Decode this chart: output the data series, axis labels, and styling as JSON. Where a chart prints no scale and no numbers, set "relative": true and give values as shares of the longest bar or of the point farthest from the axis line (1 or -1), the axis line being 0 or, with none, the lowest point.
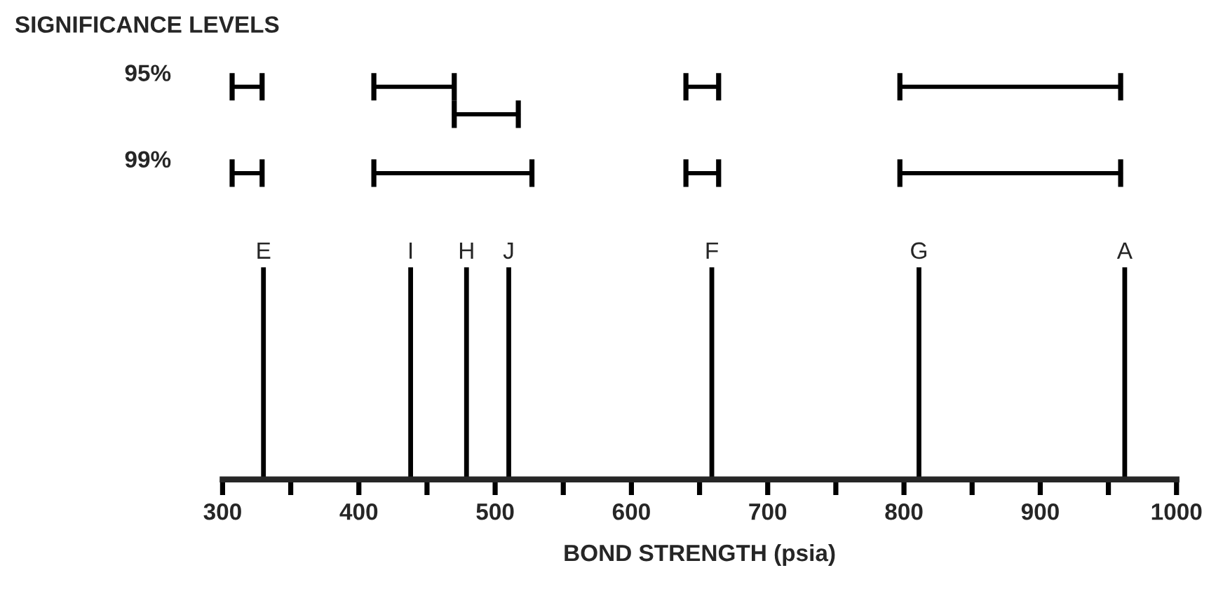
{
  "chart_data": {
    "type": "bar",
    "relative": true,
    "title": "SIGNIFICANCE LEVELS",
    "xlabel": "BOND STRENGTH (psia)",
    "xlim": [
      300,
      1000
    ],
    "xticks": [
      300,
      {
        "value": 350,
        "label": null
      },
      400,
      {
        "value": 450,
        "label": null
      },
      500,
      {
        "value": 550,
        "label": null
      },
      600,
      {
        "value": 650,
        "label": null
      },
      700,
      {
        "value": 750,
        "label": null
      },
      800,
      {
        "value": 850,
        "label": null
      },
      900,
      {
        "value": 950,
        "label": null
      },
      1000
    ],
    "series": [
      {
        "color": "#000000",
        "x": [
          330,
          438,
          479,
          510,
          659,
          811,
          962
        ],
        "values": [
          0.54,
          0.54,
          0.54,
          0.54,
          0.54,
          0.54,
          0.54
        ]
      },
      {
        "type": "line",
        "color": "#000000",
        "x": [
          307,
          329
        ],
        "values": [
          1,
          1
        ]
      },
      {
        "type": "line",
        "color": "#000000",
        "x": [
          411,
          470
        ],
        "values": [
          1,
          1
        ]
      },
      {
        "type": "line",
        "color": "#000000",
        "x": [
          470,
          517
        ],
        "values": [
          0.93,
          0.93
        ]
      },
      {
        "type": "line",
        "color": "#000000",
        "x": [
          640,
          664
        ],
        "values": [
          1,
          1
        ]
      },
      {
        "type": "line",
        "color": "#000000",
        "x": [
          797,
          959
        ],
        "values": [
          1,
          1
        ]
      },
      {
        "type": "line",
        "color": "#000000",
        "x": [
          307,
          329
        ],
        "values": [
          0.78,
          0.78
        ]
      },
      {
        "type": "line",
        "color": "#000000",
        "x": [
          411,
          527
        ],
        "values": [
          0.78,
          0.78
        ]
      },
      {
        "type": "line",
        "color": "#000000",
        "x": [
          640,
          664
        ],
        "values": [
          0.78,
          0.78
        ]
      },
      {
        "type": "line",
        "color": "#000000",
        "x": [
          797,
          959
        ],
        "values": [
          0.78,
          0.78
        ]
      }
    ],
    "annotations": [
      {
        "text": "E",
        "x": 330,
        "y": 0.54
      },
      {
        "text": "I",
        "x": 438,
        "y": 0.54
      },
      {
        "text": "H",
        "x": 479,
        "y": 0.54
      },
      {
        "text": "J",
        "x": 510,
        "y": 0.54
      },
      {
        "text": "F",
        "x": 659,
        "y": 0.54
      },
      {
        "text": "G",
        "x": 811,
        "y": 0.54
      },
      {
        "text": "A",
        "x": 962,
        "y": 0.54
      },
      "95%",
      "99%"
    ],
    "grid": false,
    "legend": false
  }
}
